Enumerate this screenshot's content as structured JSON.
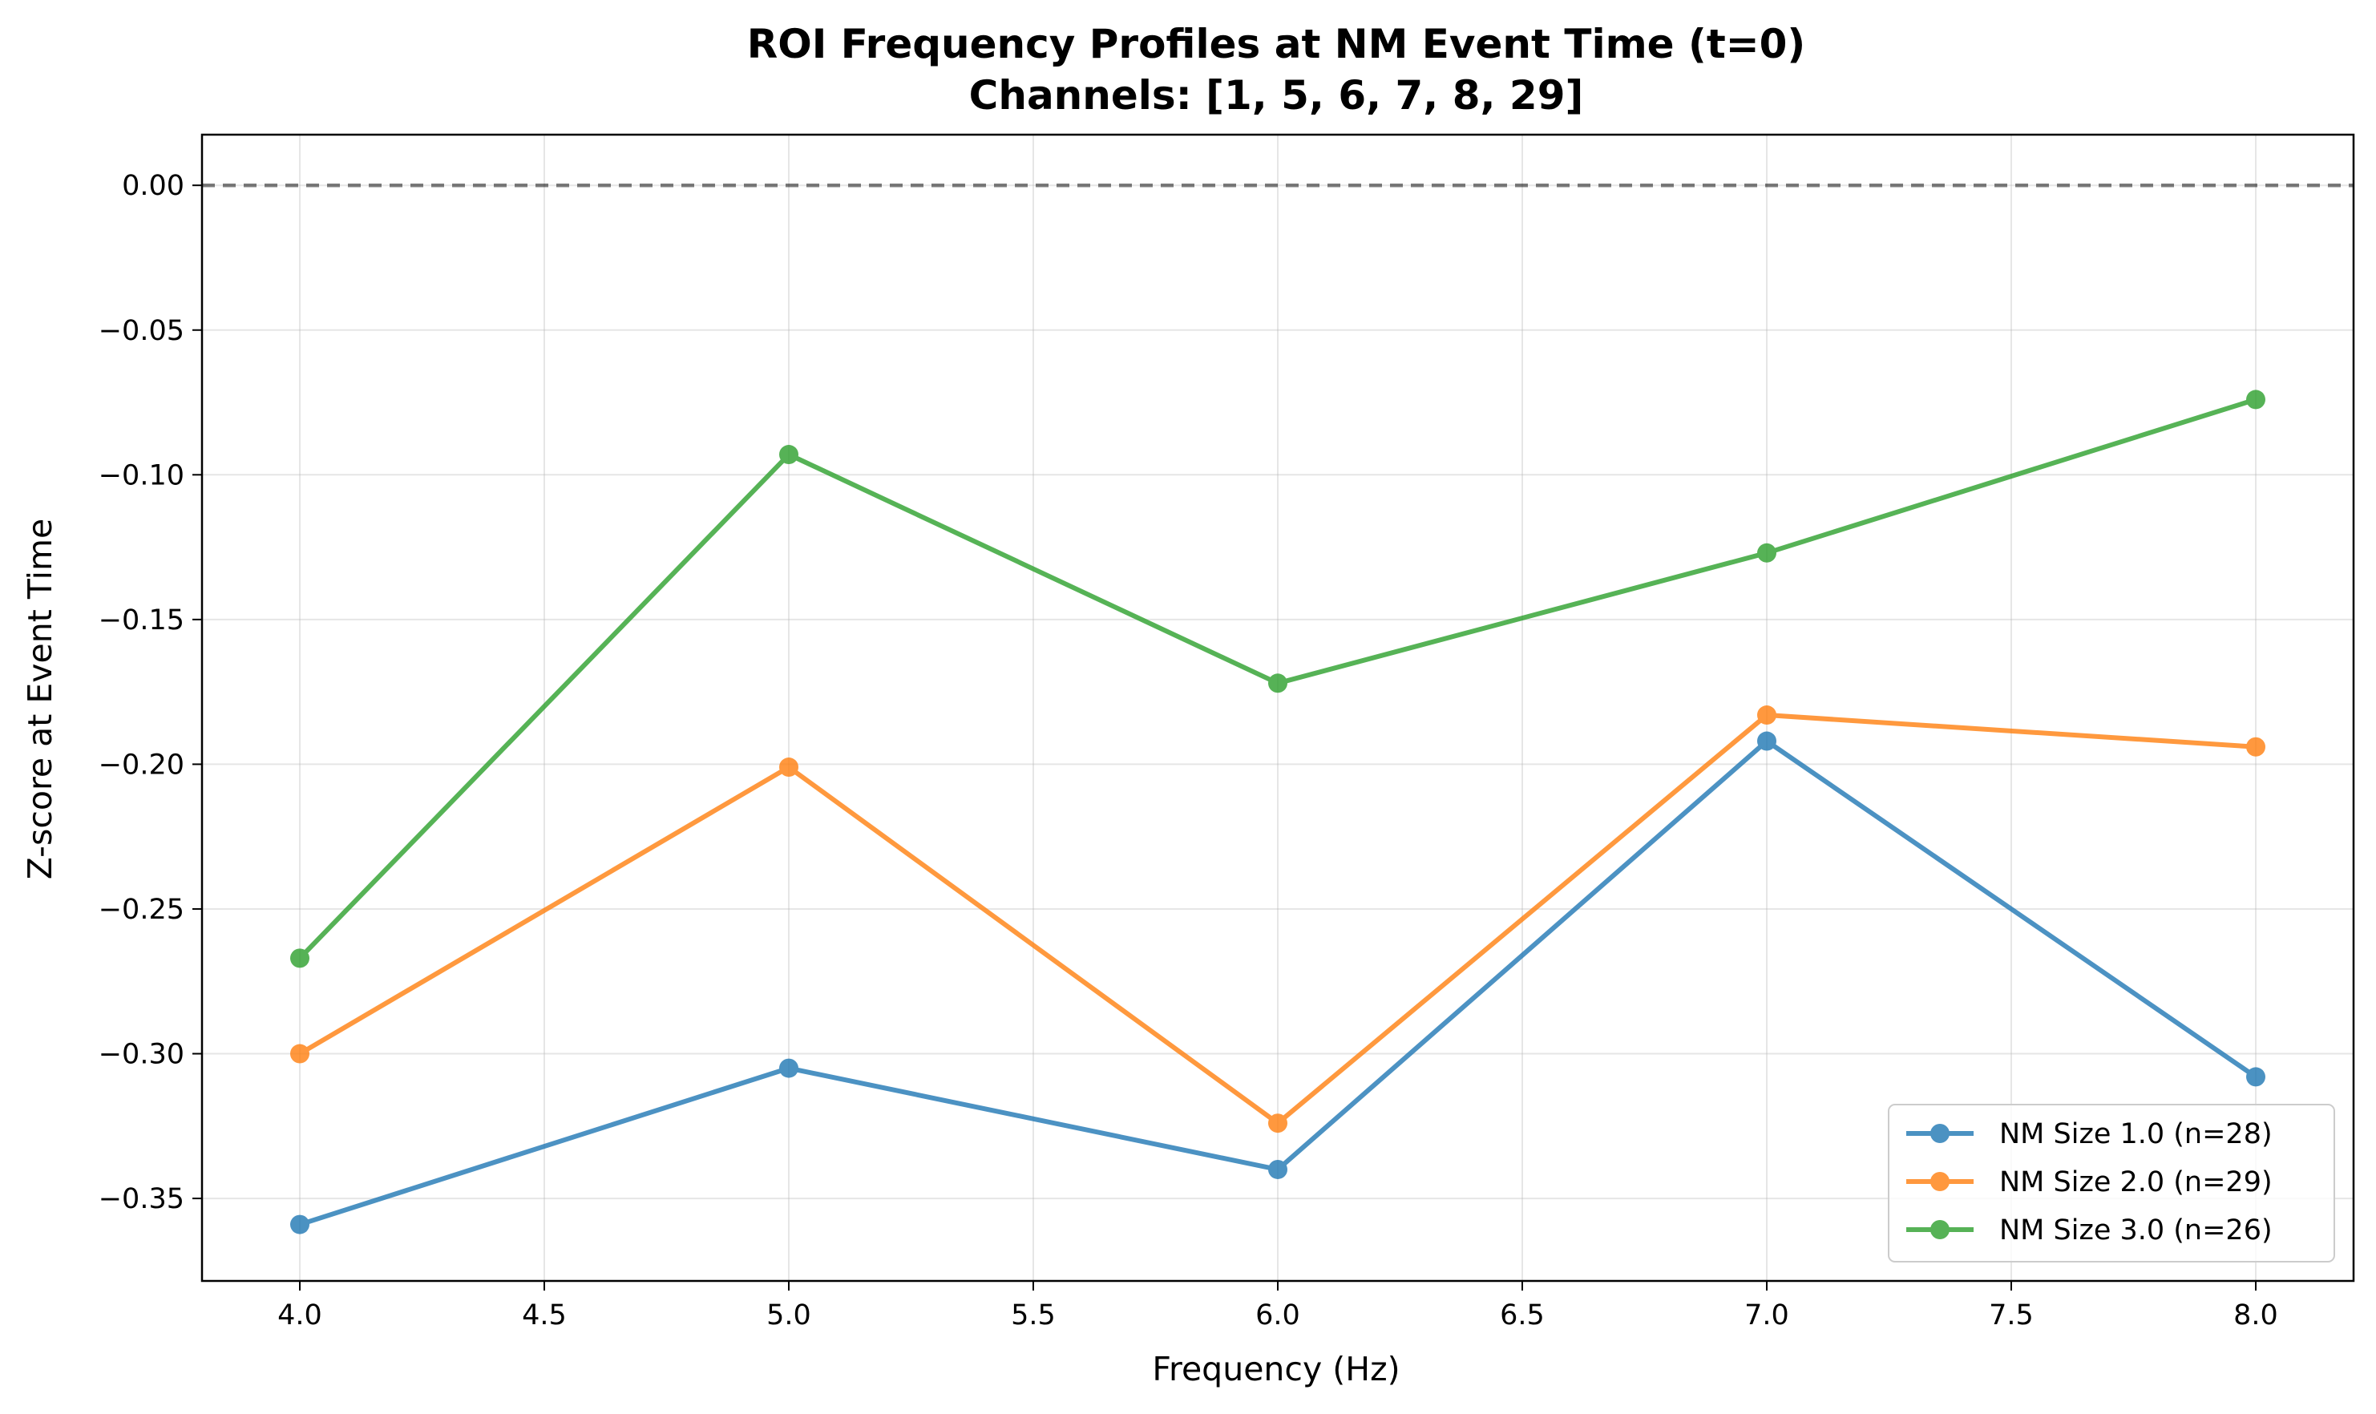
{
  "chart_data": {
    "type": "line",
    "title": "ROI Frequency Profiles at NM Event Time (t=0)",
    "subtitle": "Channels: [1, 5, 6, 7, 8, 29]",
    "xlabel": "Frequency (Hz)",
    "ylabel": "Z-score at Event Time",
    "x": [
      4.0,
      5.0,
      6.0,
      7.0,
      8.0
    ],
    "xlim": [
      3.8,
      8.2
    ],
    "ylim": [
      -0.3785,
      0.0175
    ],
    "x_ticks": [
      "4.0",
      "4.5",
      "5.0",
      "5.5",
      "6.0",
      "6.5",
      "7.0",
      "7.5",
      "8.0"
    ],
    "y_ticks": [
      "0.00",
      "−0.05",
      "−0.10",
      "−0.15",
      "−0.20",
      "−0.25",
      "−0.30",
      "−0.35"
    ],
    "grid": true,
    "reference_line": {
      "y": 0.0,
      "style": "dashed",
      "color": "#000000"
    },
    "legend_position": "lower right",
    "series": [
      {
        "name": "NM Size 1.0 (n=28)",
        "color": "#1f77b4",
        "values": [
          -0.359,
          -0.305,
          -0.34,
          -0.192,
          -0.308
        ]
      },
      {
        "name": "NM Size 2.0 (n=29)",
        "color": "#ff7f0e",
        "values": [
          -0.3,
          -0.201,
          -0.324,
          -0.183,
          -0.194
        ]
      },
      {
        "name": "NM Size 3.0 (n=26)",
        "color": "#2ca02c",
        "values": [
          -0.267,
          -0.093,
          -0.172,
          -0.127,
          -0.074
        ]
      }
    ]
  }
}
